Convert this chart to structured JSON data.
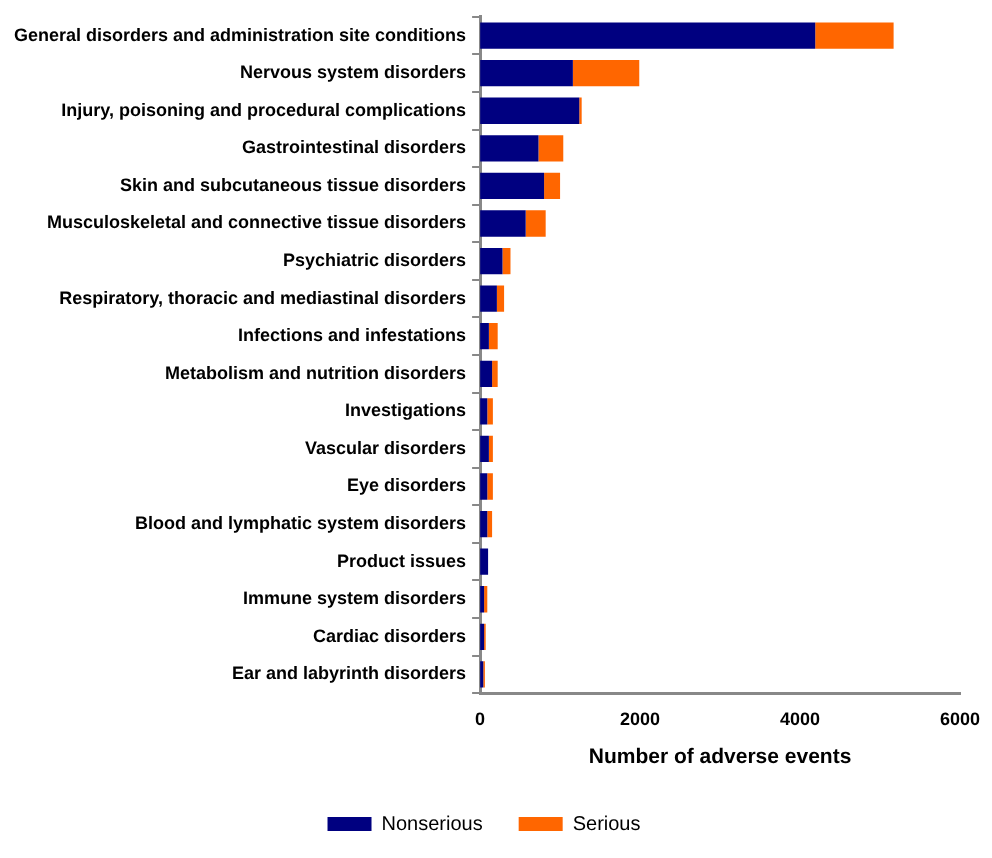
{
  "chart_data": {
    "type": "bar",
    "orientation": "horizontal",
    "stacked": true,
    "xlabel": "Number of adverse events",
    "categories": [
      "General disorders and administration site conditions",
      "Nervous system disorders",
      "Injury, poisoning and procedural complications",
      "Gastrointestinal disorders",
      "Skin and subcutaneous tissue disorders",
      "Musculoskeletal and connective tissue disorders",
      "Psychiatric disorders",
      "Respiratory, thoracic and mediastinal disorders",
      "Infections and infestations",
      "Metabolism and nutrition disorders",
      "Investigations",
      "Vascular disorders",
      "Eye disorders",
      "Blood and lymphatic system disorders",
      "Product issues",
      "Immune system disorders",
      "Cardiac disorders",
      "Ear and labyrinth disorders"
    ],
    "series": [
      {
        "name": "Nonserious",
        "color": "#000080",
        "values": [
          4190,
          1160,
          1240,
          730,
          800,
          570,
          280,
          210,
          110,
          150,
          90,
          110,
          90,
          90,
          100,
          50,
          50,
          40
        ]
      },
      {
        "name": "Serious",
        "color": "#ff6600",
        "values": [
          980,
          830,
          30,
          310,
          200,
          250,
          100,
          90,
          110,
          70,
          70,
          50,
          70,
          60,
          0,
          40,
          20,
          20
        ]
      }
    ],
    "xlim": [
      0,
      6000
    ],
    "xticks": [
      0,
      2000,
      4000,
      6000
    ],
    "grid": false,
    "legend": "bottom"
  }
}
